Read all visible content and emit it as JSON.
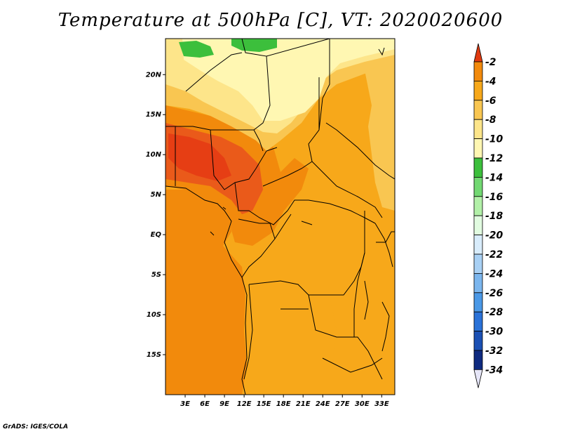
{
  "title": "Temperature at 500hPa [C], VT: 2020020600",
  "credit": "GrADS: IGES/COLA",
  "map": {
    "lon_range": [
      0,
      35
    ],
    "lat_range": [
      -20,
      24.5
    ],
    "lat_ticks": [
      {
        "lat": 20,
        "label": "20N"
      },
      {
        "lat": 15,
        "label": "15N"
      },
      {
        "lat": 10,
        "label": "10N"
      },
      {
        "lat": 5,
        "label": "5N"
      },
      {
        "lat": 0,
        "label": "EQ"
      },
      {
        "lat": -5,
        "label": "5S"
      },
      {
        "lat": -10,
        "label": "10S"
      },
      {
        "lat": -15,
        "label": "15S"
      }
    ],
    "lon_ticks": [
      {
        "lon": 3,
        "label": "3E"
      },
      {
        "lon": 6,
        "label": "6E"
      },
      {
        "lon": 9,
        "label": "9E"
      },
      {
        "lon": 12,
        "label": "12E"
      },
      {
        "lon": 15,
        "label": "15E"
      },
      {
        "lon": 18,
        "label": "18E"
      },
      {
        "lon": 21,
        "label": "21E"
      },
      {
        "lon": 24,
        "label": "24E"
      },
      {
        "lon": 27,
        "label": "27E"
      },
      {
        "lon": 30,
        "label": "30E"
      },
      {
        "lon": 33,
        "label": "33E"
      }
    ]
  },
  "colorbar": {
    "levels": [
      {
        "label": "-2",
        "color": "#e94a1a"
      },
      {
        "label": "-4",
        "color": "#f28a0c"
      },
      {
        "label": "-6",
        "color": "#f7a81a"
      },
      {
        "label": "-8",
        "color": "#f9c651"
      },
      {
        "label": "-10",
        "color": "#fde58a"
      },
      {
        "label": "-12",
        "color": "#fff7b2"
      },
      {
        "label": "-14",
        "color": "#3cbf3c"
      },
      {
        "label": "-16",
        "color": "#72d872"
      },
      {
        "label": "-18",
        "color": "#b2f0a8"
      },
      {
        "label": "-20",
        "color": "#e1fbe0"
      },
      {
        "label": "-22",
        "color": "#d8ecfb"
      },
      {
        "label": "-24",
        "color": "#a8d0f4"
      },
      {
        "label": "-26",
        "color": "#7bb6ee"
      },
      {
        "label": "-28",
        "color": "#4a98e6"
      },
      {
        "label": "-30",
        "color": "#2a72d8"
      },
      {
        "label": "-32",
        "color": "#1b50b4"
      },
      {
        "label": "-34",
        "color": "#0e2a80"
      }
    ],
    "top_color": "#e03a10",
    "bottom_color": "#e6e6f8"
  }
}
